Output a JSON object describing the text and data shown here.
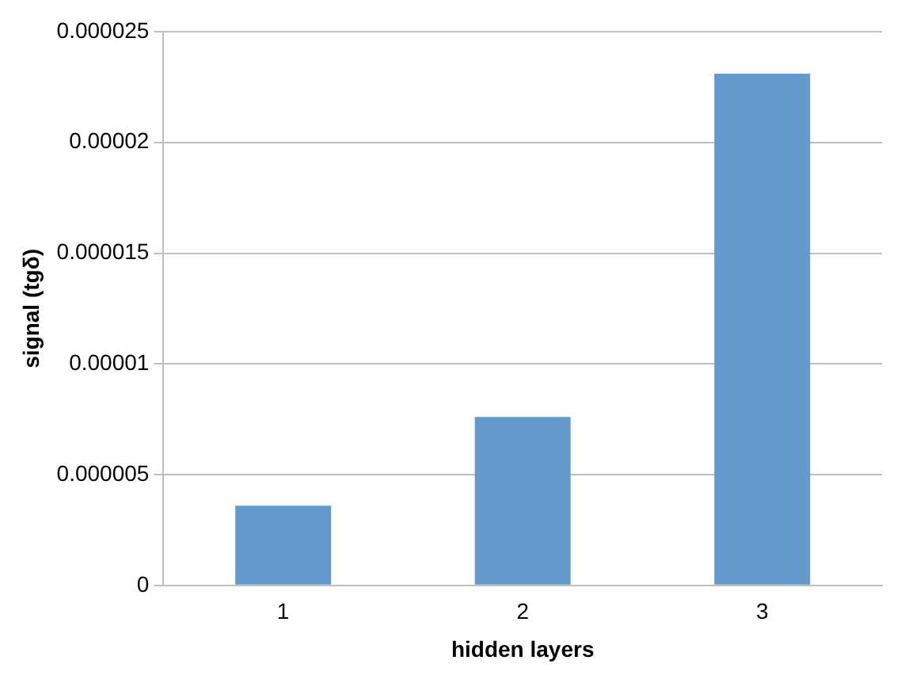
{
  "chart_data": {
    "type": "bar",
    "xlabel": "hidden layers",
    "ylabel": "signal (tgδ)",
    "categories": [
      "1",
      "2",
      "3"
    ],
    "values": [
      3.6e-06,
      7.6e-06,
      2.31e-05
    ],
    "color": "#6399cc",
    "ylim": [
      0,
      2.5e-05
    ],
    "yticks": [
      {
        "value": 0,
        "label": "0"
      },
      {
        "value": 5e-06,
        "label": "0.000005"
      },
      {
        "value": 1e-05,
        "label": "0.00001"
      },
      {
        "value": 1.5e-05,
        "label": "0.000015"
      },
      {
        "value": 2e-05,
        "label": "0.00002"
      },
      {
        "value": 2.5e-05,
        "label": "0.000025"
      }
    ],
    "grid": "y"
  }
}
